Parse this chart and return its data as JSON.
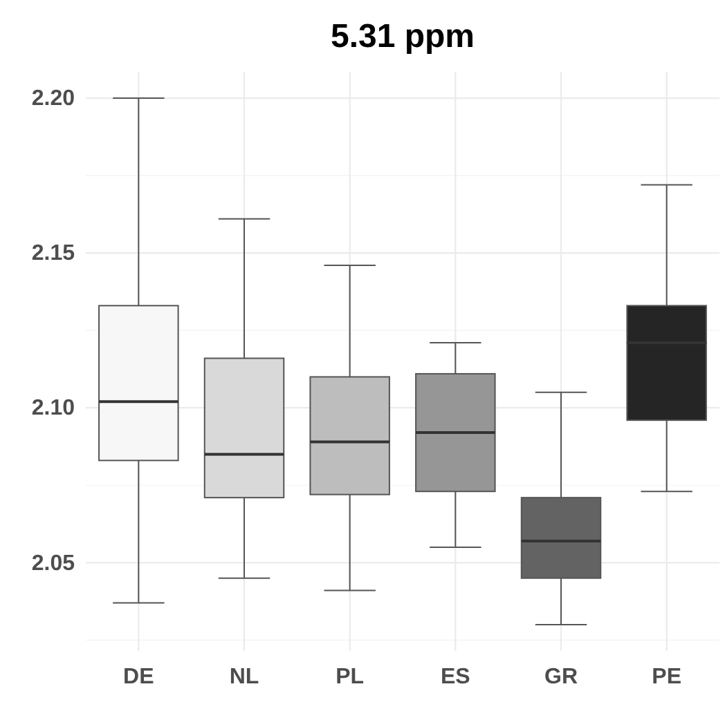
{
  "chart_data": {
    "type": "box",
    "title": "5.31 ppm",
    "categories": [
      "DE",
      "NL",
      "PL",
      "ES",
      "GR",
      "PE"
    ],
    "colors": [
      "#f7f7f7",
      "#d9d9d9",
      "#bdbdbd",
      "#969696",
      "#636363",
      "#252525"
    ],
    "boxes": [
      {
        "low": 2.037,
        "q1": 2.083,
        "median": 2.102,
        "q3": 2.133,
        "high": 2.2
      },
      {
        "low": 2.045,
        "q1": 2.071,
        "median": 2.085,
        "q3": 2.116,
        "high": 2.161
      },
      {
        "low": 2.041,
        "q1": 2.072,
        "median": 2.089,
        "q3": 2.11,
        "high": 2.146
      },
      {
        "low": 2.055,
        "q1": 2.073,
        "median": 2.092,
        "q3": 2.111,
        "high": 2.121
      },
      {
        "low": 2.03,
        "q1": 2.045,
        "median": 2.057,
        "q3": 2.071,
        "high": 2.105
      },
      {
        "low": 2.073,
        "q1": 2.096,
        "median": 2.121,
        "q3": 2.133,
        "high": 2.172
      }
    ],
    "ylim": [
      2.0215,
      2.2085
    ],
    "yticks": [
      {
        "value": 2.05,
        "label": "2.05"
      },
      {
        "value": 2.1,
        "label": "2.10"
      },
      {
        "value": 2.15,
        "label": "2.15"
      },
      {
        "value": 2.2,
        "label": "2.20"
      }
    ],
    "grid": true
  }
}
